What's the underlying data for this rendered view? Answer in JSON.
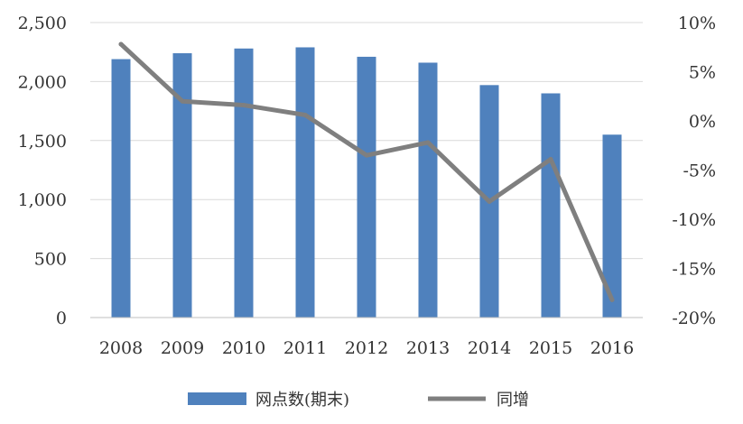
{
  "chart_data": {
    "type": "bar",
    "categories": [
      "2008",
      "2009",
      "2010",
      "2011",
      "2012",
      "2013",
      "2014",
      "2015",
      "2016"
    ],
    "series": [
      {
        "name": "网点数(期末)",
        "type": "bar",
        "axis": "left",
        "color": "#4f81bd",
        "values": [
          2190,
          2240,
          2280,
          2290,
          2210,
          2160,
          1970,
          1900,
          1550
        ]
      },
      {
        "name": "同增",
        "type": "line",
        "axis": "right",
        "color": "#7f7f7f",
        "values": [
          0.078,
          0.02,
          0.016,
          0.006,
          -0.035,
          -0.022,
          -0.082,
          -0.039,
          -0.182
        ]
      }
    ],
    "ylim_left": [
      0,
      2500
    ],
    "yticks_left": [
      "2,500",
      "2,000",
      "1,500",
      "1,000",
      "500",
      "0"
    ],
    "ylim_right": [
      -0.2,
      0.1
    ],
    "yticks_right": [
      "10%",
      "5%",
      "0%",
      "-5%",
      "-10%",
      "-15%",
      "-20%"
    ],
    "grid": true,
    "legend_position": "bottom"
  }
}
